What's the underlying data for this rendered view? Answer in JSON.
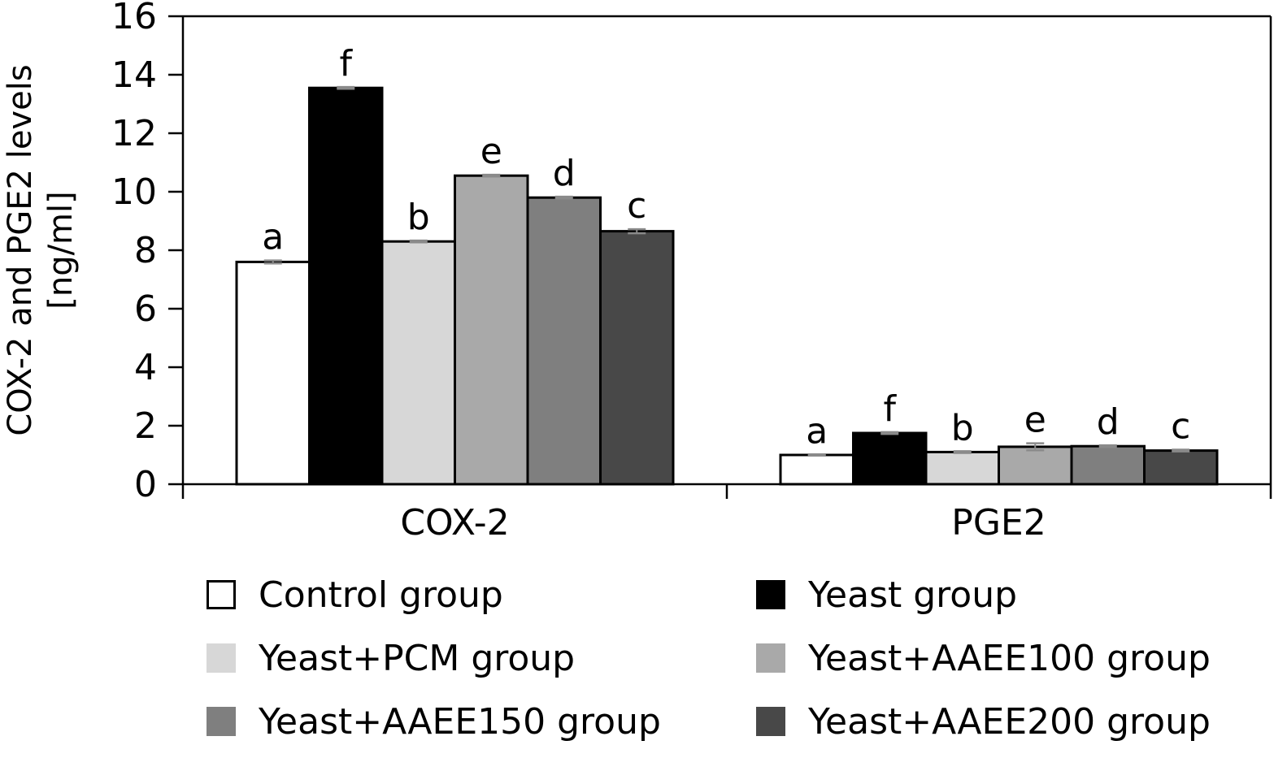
{
  "chart_data": {
    "type": "bar",
    "categories": [
      "COX-2",
      "PGE2"
    ],
    "ylabel": [
      "COX-2 and PGE2 levels",
      "[ng/ml]"
    ],
    "ylim": [
      0,
      16
    ],
    "yticks": [
      0,
      2,
      4,
      6,
      8,
      10,
      12,
      14,
      16
    ],
    "grid": false,
    "legend_placement": "bottom",
    "series": [
      {
        "name": "Control group",
        "color": "#ffffff",
        "values": [
          7.6,
          1.0
        ],
        "errors": [
          0.05,
          0.02
        ],
        "letters": [
          "a",
          "a"
        ]
      },
      {
        "name": "Yeast group",
        "color": "#000000",
        "values": [
          13.55,
          1.75
        ],
        "errors": [
          0.03,
          0.03
        ],
        "letters": [
          "f",
          "f"
        ]
      },
      {
        "name": "Yeast+PCM group",
        "color": "#d7d7d7",
        "values": [
          8.3,
          1.1
        ],
        "errors": [
          0.03,
          0.03
        ],
        "letters": [
          "b",
          "b"
        ]
      },
      {
        "name": "Yeast+AAEE100 group",
        "color": "#a9a9a9",
        "values": [
          10.55,
          1.28
        ],
        "errors": [
          0.03,
          0.12
        ],
        "letters": [
          "e",
          "e"
        ]
      },
      {
        "name": "Yeast+AAEE150 group",
        "color": "#7f7f7f",
        "values": [
          9.8,
          1.3
        ],
        "errors": [
          0.03,
          0.03
        ],
        "letters": [
          "d",
          "d"
        ]
      },
      {
        "name": "Yeast+AAEE200 group",
        "color": "#484848",
        "values": [
          8.65,
          1.15
        ],
        "errors": [
          0.07,
          0.03
        ],
        "letters": [
          "c",
          "c"
        ]
      }
    ]
  }
}
